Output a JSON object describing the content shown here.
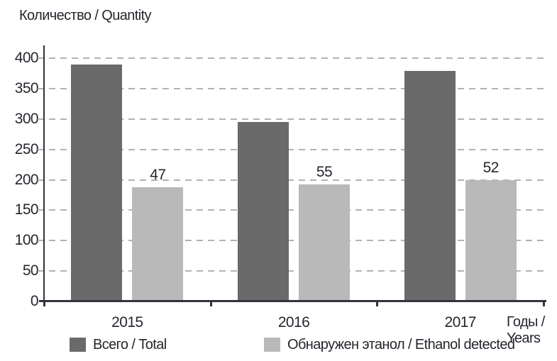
{
  "chart_data": {
    "type": "bar",
    "title": "Количество / Quantity",
    "xlabel": "Годы / Years",
    "xlabel_line1": "Годы /",
    "xlabel_line2": "Years",
    "ylabel": "Количество / Quantity",
    "categories": [
      "2015",
      "2016",
      "2017"
    ],
    "series": [
      {
        "name": "Всего / Total",
        "color": "#6a6a6a",
        "values": [
          390,
          295,
          379
        ],
        "value_labels": [
          "",
          "",
          ""
        ]
      },
      {
        "name": "Обнаружен этанол / Ethanol detected",
        "color": "#b9b9b9",
        "values": [
          188,
          193,
          200
        ],
        "value_labels": [
          "47",
          "55",
          "52"
        ]
      }
    ],
    "ylim": [
      0,
      400
    ],
    "ytick_step": 50,
    "yticks": [
      0,
      50,
      100,
      150,
      200,
      250,
      300,
      350,
      400
    ],
    "grid": "horizontal-dashed",
    "legend_position": "bottom",
    "colors": {
      "grid": "#b3b3b3",
      "axis": "#33333b",
      "text": "#26262e",
      "background": "#ffffff"
    }
  }
}
